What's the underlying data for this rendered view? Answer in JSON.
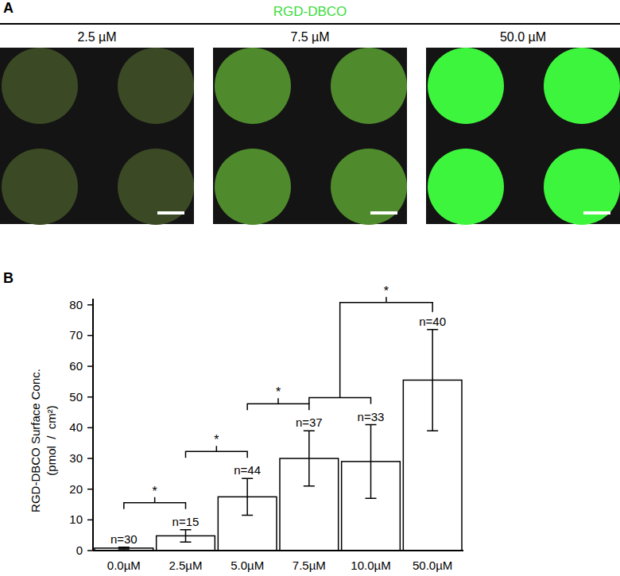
{
  "chart_data": {
    "type": "bar",
    "panel_label": "B",
    "categories": [
      "0.0µM",
      "2.5µM",
      "5.0µM",
      "7.5µM",
      "10.0µM",
      "50.0µM"
    ],
    "values": [
      0.8,
      4.8,
      17.5,
      30,
      29,
      55.5
    ],
    "errors": [
      0.3,
      2,
      6,
      9,
      12,
      16.5
    ],
    "n_labels": [
      "n=30",
      "n=15",
      "n=44",
      "n=37",
      "n=33",
      "n=40"
    ],
    "significance": [
      {
        "from": [
          "0.0µM"
        ],
        "to": [
          "2.5µM"
        ],
        "label": "*"
      },
      {
        "from": [
          "2.5µM"
        ],
        "to": [
          "5.0µM"
        ],
        "label": "*"
      },
      {
        "from": [
          "5.0µM"
        ],
        "to": [
          "7.5µM"
        ],
        "label": "*"
      },
      {
        "from": [
          "7.5µM",
          "10.0µM"
        ],
        "to": [
          "50.0µM"
        ],
        "label": "*"
      }
    ],
    "y_label": [
      "RGD-DBCO Surface Conc.",
      "(pmol  /  cm²)"
    ],
    "ylim": [
      0,
      82
    ],
    "yticks": [
      0,
      10,
      20,
      30,
      40,
      50,
      60,
      70,
      80
    ],
    "color": "#ffffff"
  },
  "panel_a": {
    "label": "A",
    "title": "RGD-DBCO",
    "title_color": "#3ddc3d",
    "images": [
      {
        "label": "2.5 µM",
        "color": "#3b4a24"
      },
      {
        "label": "7.5 µM",
        "color": "#4f8b2c"
      },
      {
        "label": "50.0 µM",
        "color": "#3ef53e"
      }
    ]
  }
}
